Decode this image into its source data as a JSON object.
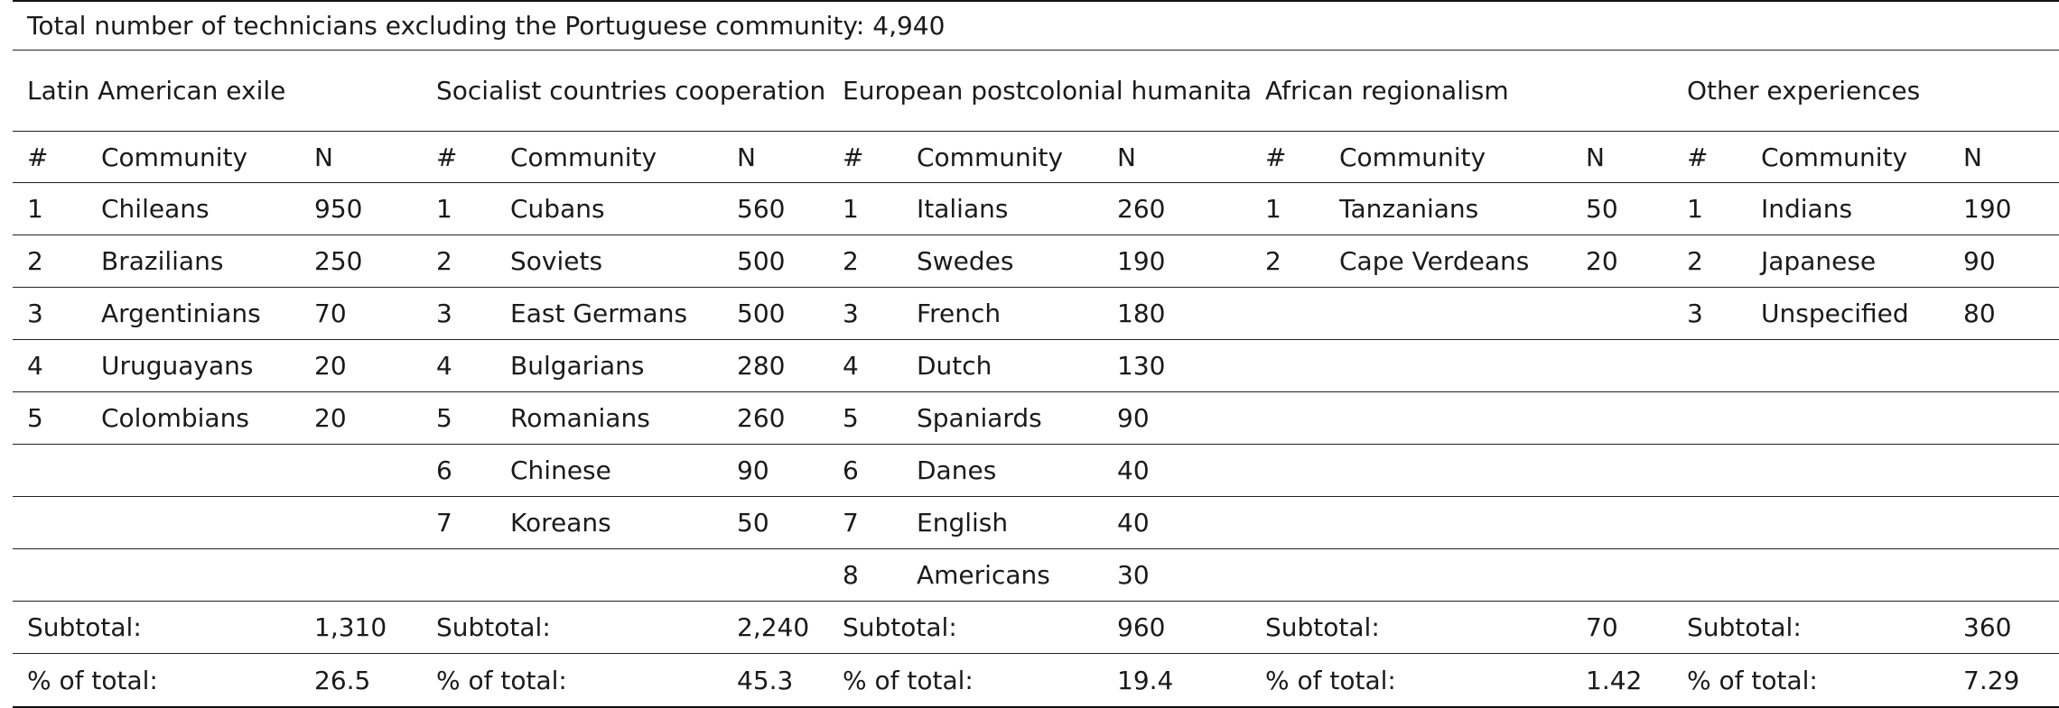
{
  "title": "Total number of technicians excluding the Portuguese community: 4,940",
  "headers": {
    "num": "#",
    "community": "Community",
    "n": "N"
  },
  "groups": [
    {
      "name": "Latin American exile",
      "rows": [
        {
          "num": "1",
          "community": "Chileans",
          "n": "950"
        },
        {
          "num": "2",
          "community": "Brazilians",
          "n": "250"
        },
        {
          "num": "3",
          "community": "Argentinians",
          "n": "70"
        },
        {
          "num": "4",
          "community": "Uruguayans",
          "n": "20"
        },
        {
          "num": "5",
          "community": "Colombians",
          "n": "20"
        }
      ],
      "subtotal_label": "Subtotal:",
      "subtotal": "1,310",
      "pct_label": "% of total:",
      "pct": "26.5"
    },
    {
      "name": "Socialist countries cooperation",
      "rows": [
        {
          "num": "1",
          "community": "Cubans",
          "n": "560"
        },
        {
          "num": "2",
          "community": "Soviets",
          "n": "500"
        },
        {
          "num": "3",
          "community": "East Germans",
          "n": "500"
        },
        {
          "num": "4",
          "community": "Bulgarians",
          "n": "280"
        },
        {
          "num": "5",
          "community": "Romanians",
          "n": "260"
        },
        {
          "num": "6",
          "community": "Chinese",
          "n": "90"
        },
        {
          "num": "7",
          "community": "Koreans",
          "n": "50"
        }
      ],
      "subtotal_label": "Subtotal:",
      "subtotal": "2,240",
      "pct_label": "% of total:",
      "pct": "45.3"
    },
    {
      "name": "European postcolonial humanitarianism",
      "rows": [
        {
          "num": "1",
          "community": "Italians",
          "n": "260"
        },
        {
          "num": "2",
          "community": "Swedes",
          "n": "190"
        },
        {
          "num": "3",
          "community": "French",
          "n": "180"
        },
        {
          "num": "4",
          "community": "Dutch",
          "n": "130"
        },
        {
          "num": "5",
          "community": "Spaniards",
          "n": "90"
        },
        {
          "num": "6",
          "community": "Danes",
          "n": "40"
        },
        {
          "num": "7",
          "community": "English",
          "n": "40"
        },
        {
          "num": "8",
          "community": "Americans",
          "n": "30"
        }
      ],
      "subtotal_label": "Subtotal:",
      "subtotal": "960",
      "pct_label": "% of total:",
      "pct": "19.4"
    },
    {
      "name": "African regionalism",
      "rows": [
        {
          "num": "1",
          "community": "Tanzanians",
          "n": "50"
        },
        {
          "num": "2",
          "community": "Cape Verdeans",
          "n": "20"
        }
      ],
      "subtotal_label": "Subtotal:",
      "subtotal": "70",
      "pct_label": "% of total:",
      "pct": "1.42"
    },
    {
      "name": "Other experiences",
      "rows": [
        {
          "num": "1",
          "community": "Indians",
          "n": "190"
        },
        {
          "num": "2",
          "community": "Japanese",
          "n": "90"
        },
        {
          "num": "3",
          "community": "Unspecified",
          "n": "80"
        }
      ],
      "subtotal_label": "Subtotal:",
      "subtotal": "360",
      "pct_label": "% of total:",
      "pct": "7.29"
    }
  ]
}
